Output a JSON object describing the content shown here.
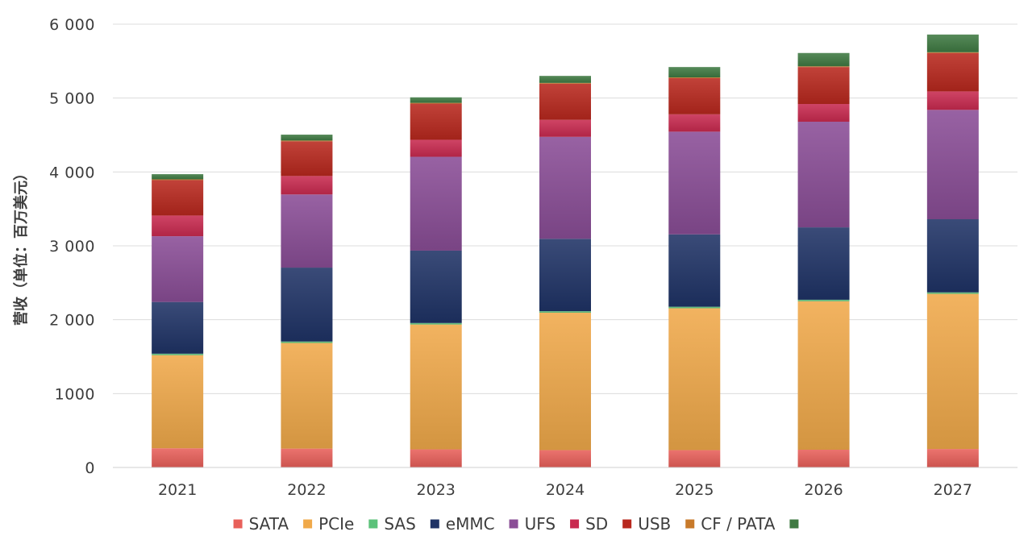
{
  "chart_data": {
    "type": "bar",
    "stacked": true,
    "categories": [
      "2021",
      "2022",
      "2023",
      "2024",
      "2025",
      "2026",
      "2027"
    ],
    "ylabel": "营收（单位：百万美元）",
    "xlabel": "",
    "ylim": [
      0,
      6000
    ],
    "yticks": [
      0,
      1000,
      2000,
      3000,
      4000,
      5000,
      6000
    ],
    "ytick_labels": [
      "0",
      "1000",
      "2 000",
      "3 000",
      "4 000",
      "5 000",
      "6 000"
    ],
    "grid": true,
    "legend_position": "bottom",
    "series": [
      {
        "name": "SATA",
        "color": "#e8605a",
        "values": [
          260,
          255,
          245,
          235,
          235,
          240,
          250
        ]
      },
      {
        "name": "PCIe",
        "color": "#f0a94a",
        "values": [
          1260,
          1430,
          1690,
          1860,
          1920,
          2010,
          2100
        ]
      },
      {
        "name": "SAS",
        "color": "#5cc27a",
        "values": [
          20,
          20,
          20,
          20,
          20,
          20,
          20
        ]
      },
      {
        "name": "eMMC",
        "color": "#1f3366",
        "values": [
          700,
          1000,
          980,
          980,
          980,
          980,
          990
        ]
      },
      {
        "name": "UFS",
        "color": "#8a4d96",
        "values": [
          890,
          990,
          1270,
          1380,
          1390,
          1430,
          1480
        ]
      },
      {
        "name": "SD",
        "color": "#c92a50",
        "values": [
          280,
          250,
          230,
          230,
          235,
          240,
          250
        ]
      },
      {
        "name": "USB",
        "color": "#b8281e",
        "values": [
          480,
          470,
          490,
          490,
          490,
          500,
          520
        ]
      },
      {
        "name": "CF / PATA",
        "color": "#c87a2a",
        "values": [
          10,
          10,
          10,
          10,
          10,
          10,
          10
        ]
      },
      {
        "name": "",
        "color": "#3f7a42",
        "values": [
          70,
          80,
          75,
          95,
          140,
          180,
          240
        ]
      }
    ]
  }
}
